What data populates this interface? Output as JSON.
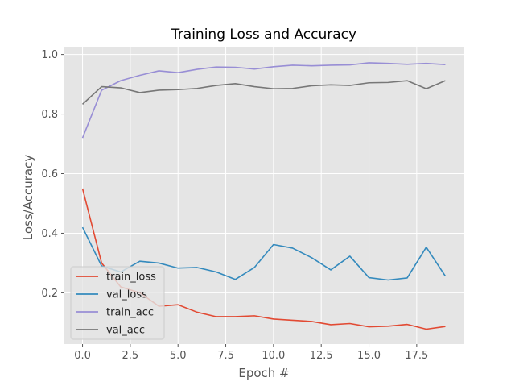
{
  "chart_data": {
    "type": "line",
    "title": "Training Loss and Accuracy",
    "xlabel": "Epoch #",
    "ylabel": "Loss/Accuracy",
    "xlim": [
      -0.95,
      19.95
    ],
    "ylim": [
      0.028,
      1.026
    ],
    "xticks": [
      0,
      2.5,
      5,
      7.5,
      10,
      12.5,
      15,
      17.5
    ],
    "xtick_labels": [
      "0.0",
      "2.5",
      "5.0",
      "7.5",
      "10.0",
      "12.5",
      "15.0",
      "17.5"
    ],
    "yticks": [
      0.2,
      0.4,
      0.6,
      0.8,
      1.0
    ],
    "ytick_labels": [
      "0.2",
      "0.4",
      "0.6",
      "0.8",
      "1.0"
    ],
    "grid": true,
    "legend_position": "lower-left",
    "x": [
      0,
      1,
      2,
      3,
      4,
      5,
      6,
      7,
      8,
      9,
      10,
      11,
      12,
      13,
      14,
      15,
      16,
      17,
      18,
      19
    ],
    "series": [
      {
        "name": "train_loss",
        "color": "#E24A33",
        "values": [
          0.55,
          0.3,
          0.22,
          0.2,
          0.155,
          0.16,
          0.135,
          0.12,
          0.12,
          0.123,
          0.112,
          0.108,
          0.104,
          0.093,
          0.097,
          0.086,
          0.088,
          0.094,
          0.078,
          0.087
        ]
      },
      {
        "name": "val_loss",
        "color": "#348ABD",
        "values": [
          0.42,
          0.29,
          0.27,
          0.306,
          0.3,
          0.283,
          0.285,
          0.27,
          0.245,
          0.285,
          0.362,
          0.35,
          0.318,
          0.277,
          0.323,
          0.251,
          0.243,
          0.25,
          0.353,
          0.256
        ]
      },
      {
        "name": "train_acc",
        "color": "#988ED5",
        "values": [
          0.72,
          0.88,
          0.912,
          0.93,
          0.945,
          0.939,
          0.95,
          0.958,
          0.957,
          0.951,
          0.959,
          0.964,
          0.962,
          0.964,
          0.965,
          0.972,
          0.97,
          0.967,
          0.97,
          0.966
        ]
      },
      {
        "name": "val_acc",
        "color": "#777777",
        "values": [
          0.833,
          0.892,
          0.888,
          0.872,
          0.88,
          0.882,
          0.886,
          0.896,
          0.902,
          0.892,
          0.885,
          0.886,
          0.895,
          0.898,
          0.896,
          0.905,
          0.906,
          0.912,
          0.885,
          0.912
        ]
      }
    ]
  }
}
